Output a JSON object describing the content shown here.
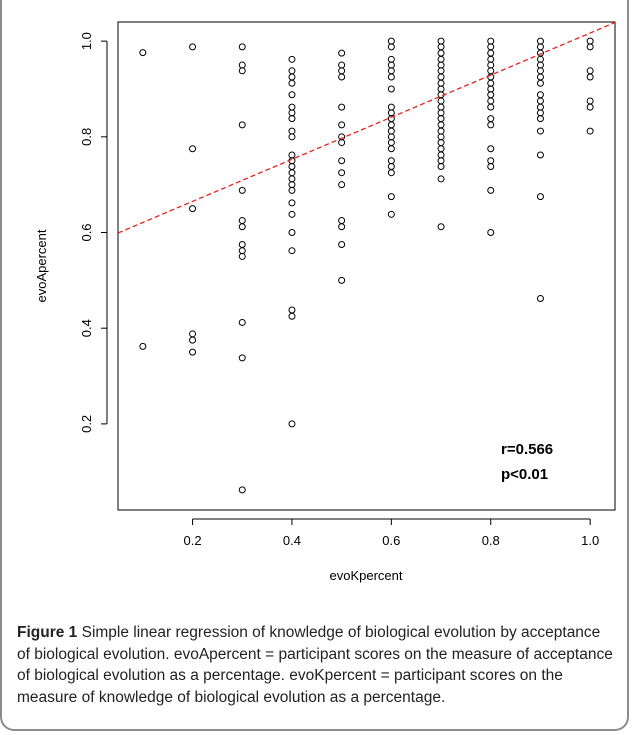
{
  "chart_data": {
    "type": "scatter",
    "xlabel": "evoKpercent",
    "ylabel": "evoApercent",
    "xlim": [
      0.05,
      1.05
    ],
    "ylim": [
      0.02,
      1.04
    ],
    "x_ticks": [
      0.2,
      0.4,
      0.6,
      0.8,
      1.0
    ],
    "x_tick_labels": [
      "0.2",
      "0.4",
      "0.6",
      "0.8",
      "1.0"
    ],
    "y_ticks": [
      0.2,
      0.4,
      0.6,
      0.8,
      1.0
    ],
    "y_tick_labels": [
      "0.2",
      "0.4",
      "0.6",
      "0.8",
      "1.0"
    ],
    "grid": false,
    "marker": "open-circle",
    "regression_line": {
      "intercept": 0.577,
      "slope": 0.44,
      "color": "#e8211c",
      "style": "dashed"
    },
    "annotations": [
      "r=0.566",
      "p<0.01"
    ],
    "points": [
      [
        0.1,
        0.976
      ],
      [
        0.1,
        0.362
      ],
      [
        0.2,
        0.988
      ],
      [
        0.2,
        0.775
      ],
      [
        0.2,
        0.65
      ],
      [
        0.2,
        0.388
      ],
      [
        0.2,
        0.375
      ],
      [
        0.2,
        0.35
      ],
      [
        0.3,
        0.988
      ],
      [
        0.3,
        0.95
      ],
      [
        0.3,
        0.938
      ],
      [
        0.3,
        0.825
      ],
      [
        0.3,
        0.688
      ],
      [
        0.3,
        0.625
      ],
      [
        0.3,
        0.612
      ],
      [
        0.3,
        0.575
      ],
      [
        0.3,
        0.562
      ],
      [
        0.3,
        0.55
      ],
      [
        0.3,
        0.412
      ],
      [
        0.3,
        0.338
      ],
      [
        0.3,
        0.062
      ],
      [
        0.4,
        0.962
      ],
      [
        0.4,
        0.938
      ],
      [
        0.4,
        0.925
      ],
      [
        0.4,
        0.912
      ],
      [
        0.4,
        0.888
      ],
      [
        0.4,
        0.862
      ],
      [
        0.4,
        0.85
      ],
      [
        0.4,
        0.838
      ],
      [
        0.4,
        0.812
      ],
      [
        0.4,
        0.8
      ],
      [
        0.4,
        0.762
      ],
      [
        0.4,
        0.75
      ],
      [
        0.4,
        0.738
      ],
      [
        0.4,
        0.725
      ],
      [
        0.4,
        0.712
      ],
      [
        0.4,
        0.7
      ],
      [
        0.4,
        0.688
      ],
      [
        0.4,
        0.662
      ],
      [
        0.4,
        0.638
      ],
      [
        0.4,
        0.6
      ],
      [
        0.4,
        0.562
      ],
      [
        0.4,
        0.438
      ],
      [
        0.4,
        0.425
      ],
      [
        0.4,
        0.2
      ],
      [
        0.5,
        0.975
      ],
      [
        0.5,
        0.95
      ],
      [
        0.5,
        0.938
      ],
      [
        0.5,
        0.925
      ],
      [
        0.5,
        0.862
      ],
      [
        0.5,
        0.825
      ],
      [
        0.5,
        0.8
      ],
      [
        0.5,
        0.788
      ],
      [
        0.5,
        0.75
      ],
      [
        0.5,
        0.725
      ],
      [
        0.5,
        0.7
      ],
      [
        0.5,
        0.625
      ],
      [
        0.5,
        0.612
      ],
      [
        0.5,
        0.575
      ],
      [
        0.5,
        0.5
      ],
      [
        0.6,
        1.0
      ],
      [
        0.6,
        0.988
      ],
      [
        0.6,
        0.962
      ],
      [
        0.6,
        0.95
      ],
      [
        0.6,
        0.938
      ],
      [
        0.6,
        0.925
      ],
      [
        0.6,
        0.9
      ],
      [
        0.6,
        0.862
      ],
      [
        0.6,
        0.85
      ],
      [
        0.6,
        0.838
      ],
      [
        0.6,
        0.825
      ],
      [
        0.6,
        0.812
      ],
      [
        0.6,
        0.8
      ],
      [
        0.6,
        0.788
      ],
      [
        0.6,
        0.775
      ],
      [
        0.6,
        0.75
      ],
      [
        0.6,
        0.738
      ],
      [
        0.6,
        0.725
      ],
      [
        0.6,
        0.675
      ],
      [
        0.6,
        0.638
      ],
      [
        0.7,
        1.0
      ],
      [
        0.7,
        0.988
      ],
      [
        0.7,
        0.975
      ],
      [
        0.7,
        0.962
      ],
      [
        0.7,
        0.95
      ],
      [
        0.7,
        0.938
      ],
      [
        0.7,
        0.925
      ],
      [
        0.7,
        0.912
      ],
      [
        0.7,
        0.9
      ],
      [
        0.7,
        0.888
      ],
      [
        0.7,
        0.875
      ],
      [
        0.7,
        0.862
      ],
      [
        0.7,
        0.85
      ],
      [
        0.7,
        0.838
      ],
      [
        0.7,
        0.825
      ],
      [
        0.7,
        0.812
      ],
      [
        0.7,
        0.8
      ],
      [
        0.7,
        0.788
      ],
      [
        0.7,
        0.775
      ],
      [
        0.7,
        0.762
      ],
      [
        0.7,
        0.75
      ],
      [
        0.7,
        0.738
      ],
      [
        0.7,
        0.712
      ],
      [
        0.7,
        0.612
      ],
      [
        0.8,
        1.0
      ],
      [
        0.8,
        0.988
      ],
      [
        0.8,
        0.975
      ],
      [
        0.8,
        0.962
      ],
      [
        0.8,
        0.95
      ],
      [
        0.8,
        0.938
      ],
      [
        0.8,
        0.925
      ],
      [
        0.8,
        0.912
      ],
      [
        0.8,
        0.9
      ],
      [
        0.8,
        0.888
      ],
      [
        0.8,
        0.875
      ],
      [
        0.8,
        0.862
      ],
      [
        0.8,
        0.838
      ],
      [
        0.8,
        0.825
      ],
      [
        0.8,
        0.775
      ],
      [
        0.8,
        0.75
      ],
      [
        0.8,
        0.738
      ],
      [
        0.8,
        0.688
      ],
      [
        0.8,
        0.6
      ],
      [
        0.9,
        1.0
      ],
      [
        0.9,
        0.988
      ],
      [
        0.9,
        0.975
      ],
      [
        0.9,
        0.962
      ],
      [
        0.9,
        0.95
      ],
      [
        0.9,
        0.938
      ],
      [
        0.9,
        0.925
      ],
      [
        0.9,
        0.912
      ],
      [
        0.9,
        0.888
      ],
      [
        0.9,
        0.875
      ],
      [
        0.9,
        0.862
      ],
      [
        0.9,
        0.85
      ],
      [
        0.9,
        0.838
      ],
      [
        0.9,
        0.812
      ],
      [
        0.9,
        0.762
      ],
      [
        0.9,
        0.675
      ],
      [
        0.9,
        0.462
      ],
      [
        1.0,
        1.0
      ],
      [
        1.0,
        0.988
      ],
      [
        1.0,
        0.938
      ],
      [
        1.0,
        0.925
      ],
      [
        1.0,
        0.875
      ],
      [
        1.0,
        0.862
      ],
      [
        1.0,
        0.812
      ]
    ]
  },
  "caption": {
    "label": "Figure 1",
    "text": " Simple linear regression of knowledge of biological evolution by acceptance of biological evolution. evoApercent = participant scores on the measure of acceptance of biological evolution as a percentage. evoKpercent = participant scores on the measure of knowledge of biological evolution as a percentage."
  }
}
